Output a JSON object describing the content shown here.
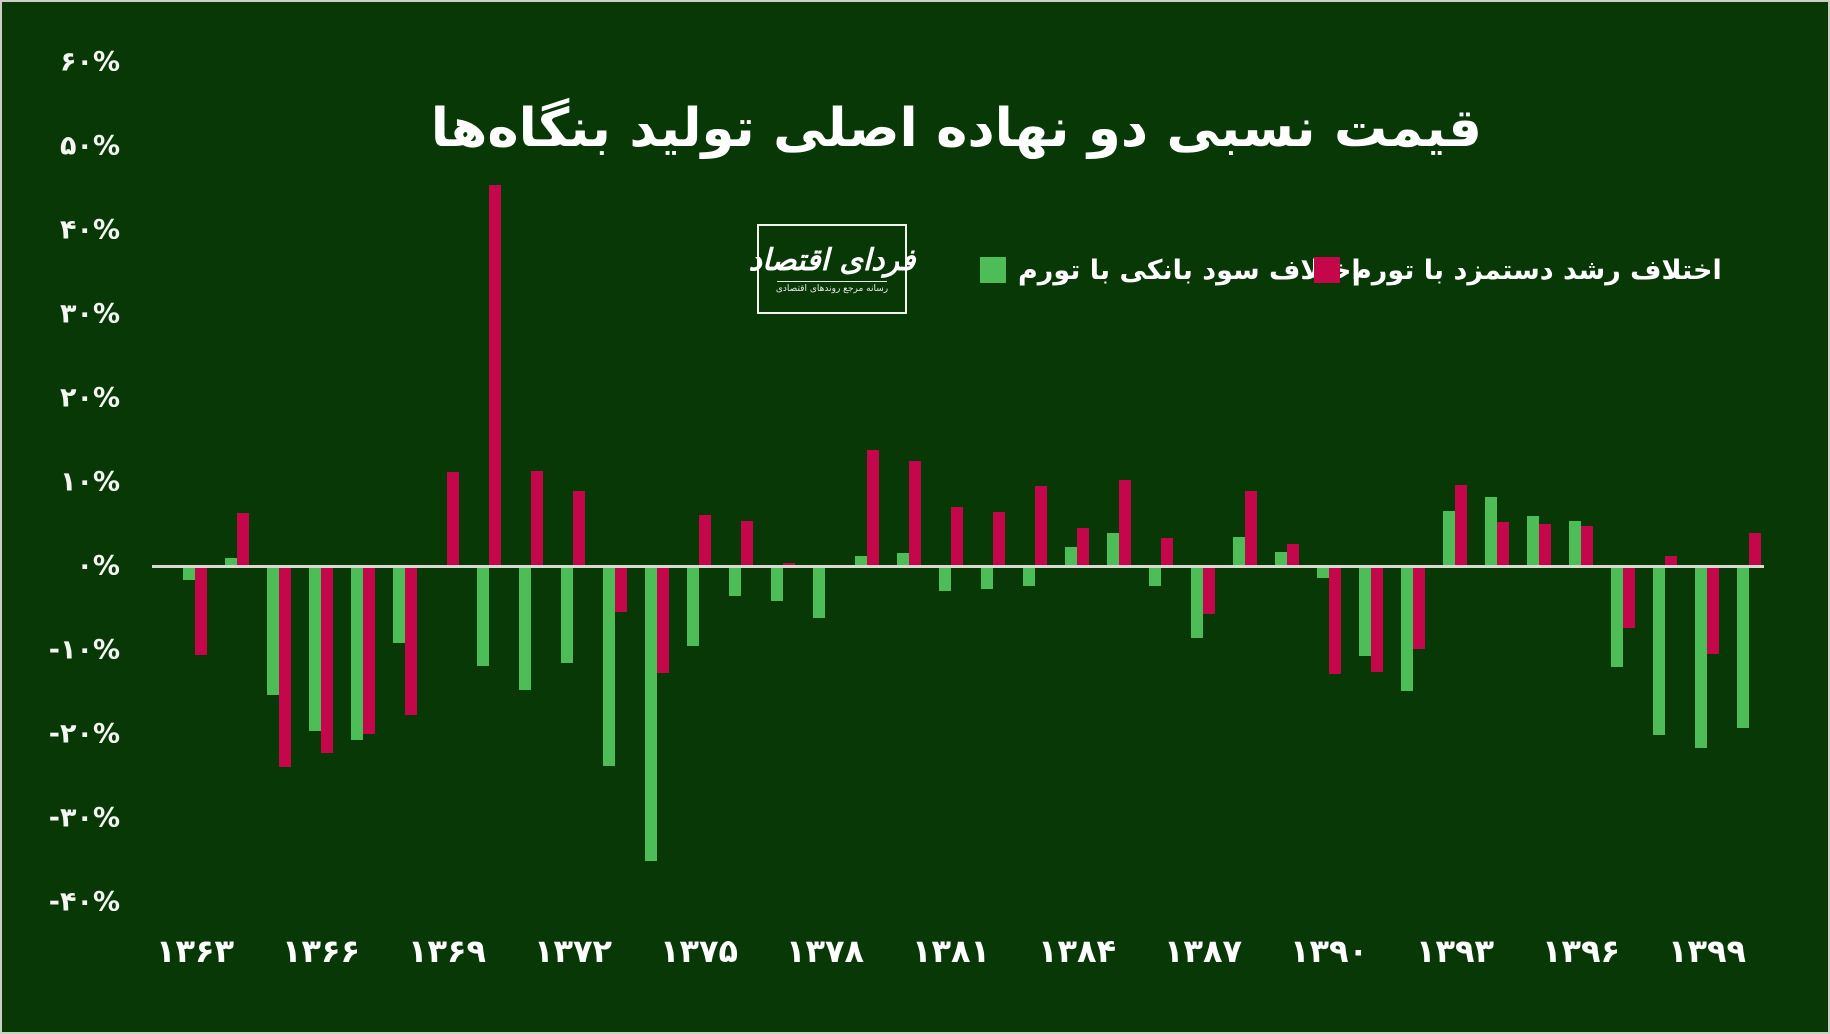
{
  "title": "قیمت نسبی دو نهاده اصلی تولید بنگاه‌ها",
  "logo": {
    "name": "فردای اقتصاد",
    "tagline": "رسانه مرجع روندهای اقتصادی"
  },
  "colors": {
    "background": "#073805",
    "text": "#ffffff",
    "zero_line": "#d6dacf",
    "green_series": "#4dbd58",
    "red_series": "#c3074a"
  },
  "chart_data": {
    "type": "bar",
    "title": "قیمت نسبی دو نهاده اصلی تولید بنگاه‌ها",
    "categories": [
      1363,
      1364,
      1365,
      1366,
      1367,
      1368,
      1369,
      1370,
      1371,
      1372,
      1373,
      1374,
      1375,
      1376,
      1377,
      1378,
      1379,
      1380,
      1381,
      1382,
      1383,
      1384,
      1385,
      1386,
      1387,
      1388,
      1389,
      1390,
      1391,
      1392,
      1393,
      1394,
      1395,
      1396,
      1397,
      1398,
      1399,
      1400
    ],
    "series": [
      {
        "name": "اختلاف سود بانکی با تورم",
        "color": "#4dbd58",
        "values": [
          -1.6,
          1.0,
          -15.2,
          -19.5,
          -20.6,
          -9.0,
          0.0,
          -11.8,
          -14.6,
          -11.4,
          -23.7,
          -35.0,
          -9.4,
          -3.5,
          -4.1,
          -6.1,
          1.2,
          1.6,
          -2.9,
          -2.6,
          -2.3,
          2.3,
          3.9,
          -2.3,
          -8.4,
          3.5,
          1.7,
          -1.3,
          -10.6,
          -14.8,
          6.6,
          8.2,
          6.0,
          5.4,
          -11.9,
          -20.0,
          -21.6,
          -19.2
        ]
      },
      {
        "name": "اختلاف رشد دستمزد با تورم",
        "color": "#c3074a",
        "values": [
          -10.5,
          6.3,
          -23.8,
          -22.2,
          -19.9,
          -17.6,
          11.2,
          45.4,
          11.3,
          8.9,
          -5.3,
          -12.6,
          6.1,
          5.3,
          0.3,
          0.0,
          13.8,
          12.5,
          7.0,
          6.4,
          9.5,
          4.5,
          10.2,
          3.3,
          -5.6,
          8.9,
          2.6,
          -12.7,
          -12.5,
          -9.8,
          9.7,
          5.2,
          5.0,
          4.8,
          -7.3,
          1.2,
          -10.4,
          3.9
        ]
      }
    ],
    "ylim": [
      -40,
      60
    ],
    "y_tick_step": 10,
    "y_tick_labels": [
      "۶۰%",
      "۵۰%",
      "۴۰%",
      "۳۰%",
      "۲۰%",
      "۱۰%",
      "۰%",
      "-۱۰%",
      "-۲۰%",
      "-۳۰%",
      "-۴۰%"
    ],
    "y_tick_values": [
      60,
      50,
      40,
      30,
      20,
      10,
      0,
      -10,
      -20,
      -30,
      -40
    ],
    "x_tick_labels": [
      "۱۳۶۳",
      "۱۳۶۶",
      "۱۳۶۹",
      "۱۳۷۲",
      "۱۳۷۵",
      "۱۳۷۸",
      "۱۳۸۱",
      "۱۳۸۴",
      "۱۳۸۷",
      "۱۳۹۰",
      "۱۳۹۳",
      "۱۳۹۶",
      "۱۳۹۹"
    ],
    "x_tick_indices": [
      0,
      3,
      6,
      9,
      12,
      15,
      18,
      21,
      24,
      27,
      30,
      33,
      36
    ],
    "grid": false,
    "legend_position": "top",
    "zero_line": true
  },
  "legend": {
    "items": [
      {
        "label": "اختلاف سود بانکی با تورم",
        "color": "#4dbd58"
      },
      {
        "label": "اختلاف رشد دستمزد با تورم",
        "color": "#c3074a"
      }
    ]
  }
}
